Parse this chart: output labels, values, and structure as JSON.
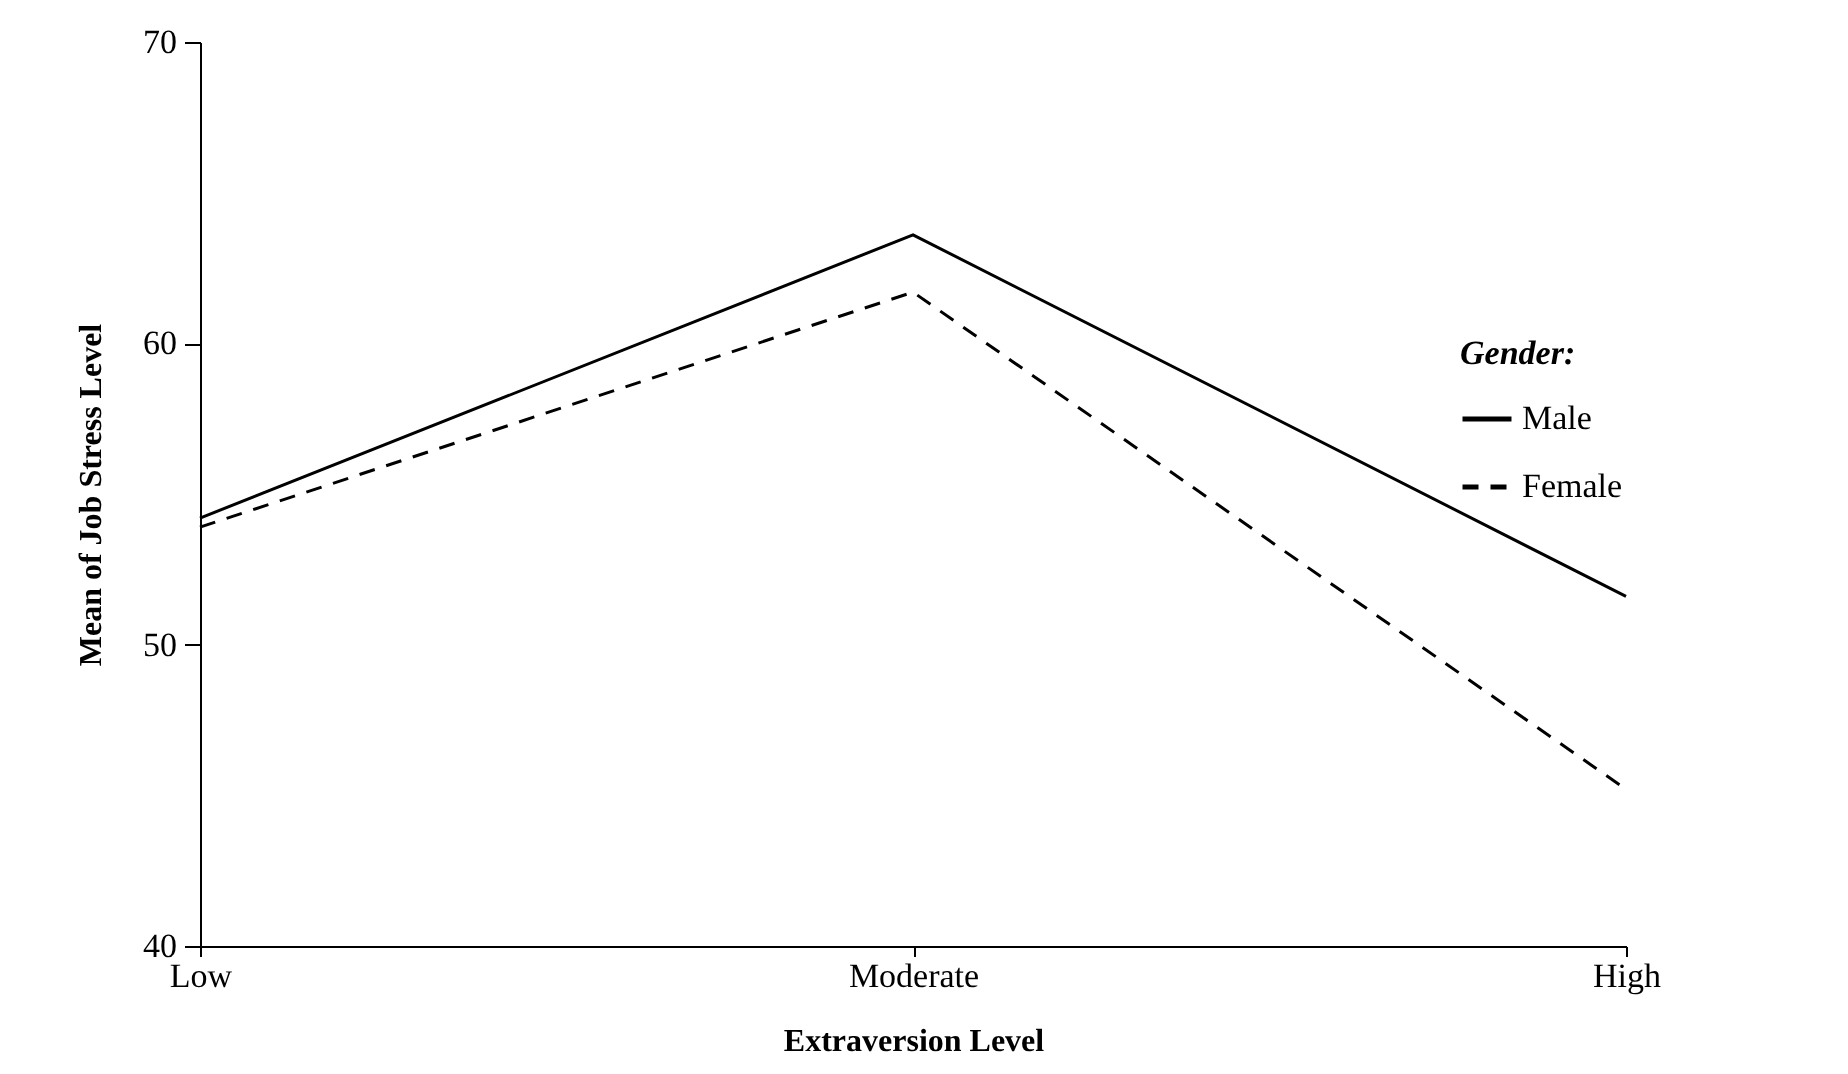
{
  "chart_data": {
    "type": "line",
    "xlabel": "Extraversion  Level",
    "ylabel": "Mean of Job Stress Level",
    "legend_title": "Gender:",
    "categories": [
      "Low",
      "Moderate",
      "High"
    ],
    "series": [
      {
        "name": "Male",
        "color": "#000000",
        "line_style": "solid",
        "values": [
          54.2,
          63.6,
          51.6
        ]
      },
      {
        "name": "Female",
        "color": "#000000",
        "line_style": "dashed",
        "values": [
          53.9,
          61.7,
          45.2
        ]
      }
    ],
    "ylim": [
      40,
      70
    ],
    "yticks": [
      40,
      50,
      60,
      70
    ],
    "grid": false,
    "legend": "right",
    "marker": "none"
  }
}
